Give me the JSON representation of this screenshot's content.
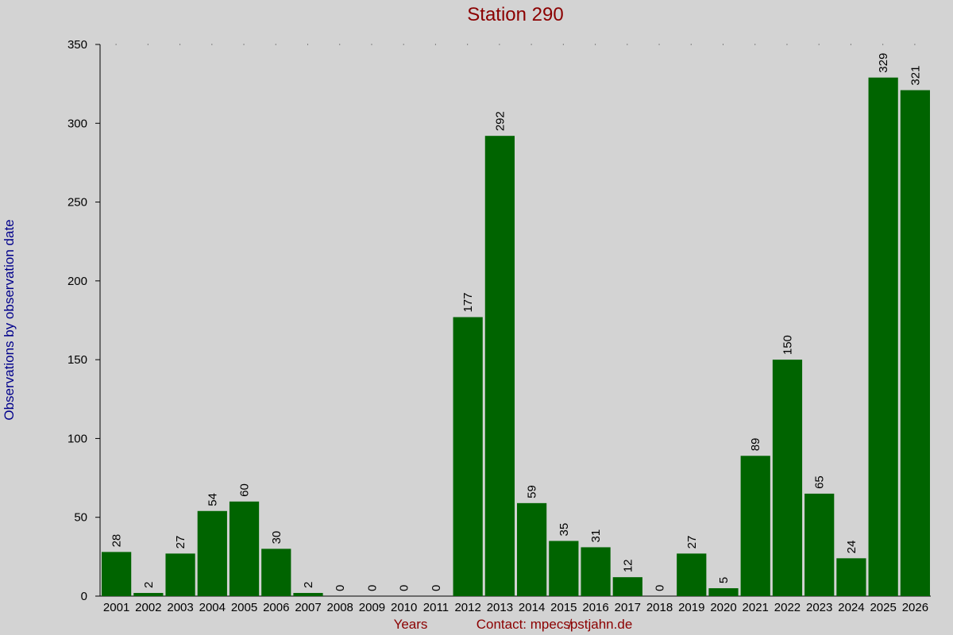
{
  "chart_data": {
    "type": "bar",
    "title": "Station 290",
    "xlabel": "Years",
    "ylabel": "Observations by observation date",
    "contact": "Contact: mpecs̸pstjahn.de",
    "categories": [
      "2001",
      "2002",
      "2003",
      "2004",
      "2005",
      "2006",
      "2007",
      "2008",
      "2009",
      "2010",
      "2011",
      "2012",
      "2013",
      "2014",
      "2015",
      "2016",
      "2017",
      "2018",
      "2019",
      "2020",
      "2021",
      "2022",
      "2023",
      "2024",
      "2025",
      "2026"
    ],
    "values": [
      28,
      2,
      27,
      54,
      60,
      30,
      2,
      0,
      0,
      0,
      0,
      177,
      292,
      59,
      35,
      31,
      12,
      0,
      27,
      5,
      89,
      150,
      65,
      24,
      329,
      321
    ],
    "ylim": [
      0,
      350
    ],
    "yticks": [
      0,
      50,
      100,
      150,
      200,
      250,
      300,
      350
    ],
    "data_labels": true,
    "grid": false
  },
  "colors": {
    "background": "#d3d3d3",
    "bar": "#006400",
    "title": "#8b0000",
    "ylabel": "#00008b",
    "xlabel": "#8b0000",
    "axis": "#000000"
  }
}
